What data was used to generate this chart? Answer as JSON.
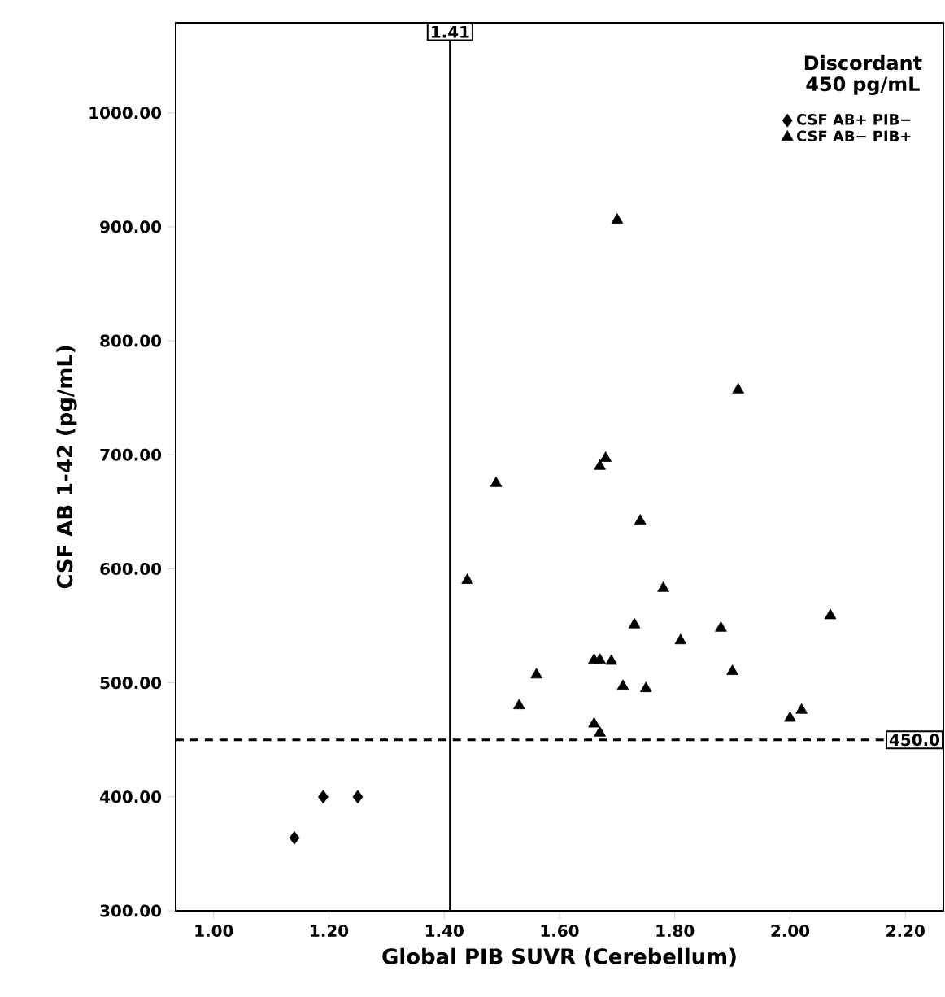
{
  "chart_data": {
    "type": "scatter",
    "xlabel": "Global PIB SUVR (Cerebellum)",
    "ylabel": "CSF AB 1-42 (pg/mL)",
    "legend_title": "Discordant 450 pg/mL",
    "legend": "top right",
    "grid": false,
    "xlim": [
      0.934,
      2.266
    ],
    "ylim": [
      300,
      1079
    ],
    "xticks": [
      {
        "value": 1.0,
        "label": "1.00"
      },
      {
        "value": 1.2,
        "label": "1.20"
      },
      {
        "value": 1.4,
        "label": "1.40"
      },
      {
        "value": 1.6,
        "label": "1.60"
      },
      {
        "value": 1.8,
        "label": "1.80"
      },
      {
        "value": 2.0,
        "label": "2.00"
      },
      {
        "value": 2.2,
        "label": "2.20"
      }
    ],
    "yticks": [
      {
        "value": 300,
        "label": "300.00"
      },
      {
        "value": 400,
        "label": "400.00"
      },
      {
        "value": 500,
        "label": "500.00"
      },
      {
        "value": 600,
        "label": "600.00"
      },
      {
        "value": 700,
        "label": "700.00"
      },
      {
        "value": 800,
        "label": "800.00"
      },
      {
        "value": 900,
        "label": "900.00"
      },
      {
        "value": 1000,
        "label": "1000.00"
      }
    ],
    "ref_lines": [
      {
        "axis": "x",
        "value": 1.41,
        "label": "1.41",
        "line_style": "solid"
      },
      {
        "axis": "y",
        "value": 450,
        "label": "450.0",
        "line_style": "dashed"
      }
    ],
    "series": [
      {
        "name": "CSF AB+ PIB−",
        "color": "#000000",
        "marker": "diamond",
        "x": [
          1.14,
          1.19,
          1.25
        ],
        "values": [
          364,
          400,
          400
        ]
      },
      {
        "name": "CSF AB− PIB+",
        "color": "#000000",
        "marker": "triangle",
        "x": [
          1.44,
          1.49,
          1.67,
          1.68,
          1.7,
          1.91,
          1.74,
          1.78,
          1.73,
          1.88,
          1.81,
          2.07,
          1.66,
          1.67,
          1.69,
          1.56,
          1.71,
          1.75,
          1.9,
          1.53,
          1.66,
          1.67,
          2.0,
          2.02
        ],
        "values": [
          590,
          675,
          690,
          697,
          906,
          757,
          642,
          583,
          551,
          548,
          537,
          559,
          520,
          520,
          519,
          507,
          497,
          495,
          510,
          480,
          464,
          456,
          469,
          476
        ]
      }
    ]
  }
}
